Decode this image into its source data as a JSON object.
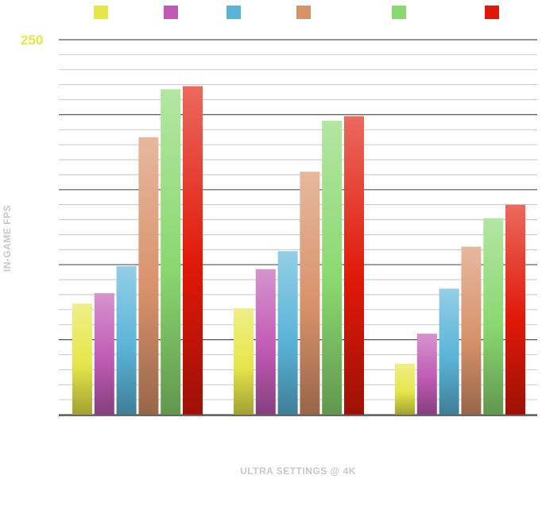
{
  "chart_data": {
    "type": "bar",
    "title": "",
    "xlabel": "ULTRA SETTINGS @ 4K",
    "ylabel": "IN-GAME FPS",
    "ylim": [
      0,
      250
    ],
    "y_tick_labels": [
      "250"
    ],
    "grid": true,
    "legend_position": "top",
    "categories": [
      "",
      "",
      ""
    ],
    "series": [
      {
        "color": "#e6e64a",
        "values": [
          74,
          71,
          34
        ]
      },
      {
        "color": "#c05ab4",
        "values": [
          81,
          97,
          54
        ]
      },
      {
        "color": "#5ab4d8",
        "values": [
          99,
          109,
          84
        ]
      },
      {
        "color": "#d8926a",
        "values": [
          185,
          162,
          112
        ]
      },
      {
        "color": "#8ad870",
        "values": [
          217,
          196,
          131
        ]
      },
      {
        "color": "#e01808",
        "values": [
          219,
          199,
          140
        ]
      }
    ],
    "colors": {
      "tick_label": "#e6e64a",
      "axis_title": "#c8c8c8",
      "grid_major": "#555555",
      "grid_minor": "#bbbbbb",
      "baseline": "#666666"
    }
  }
}
